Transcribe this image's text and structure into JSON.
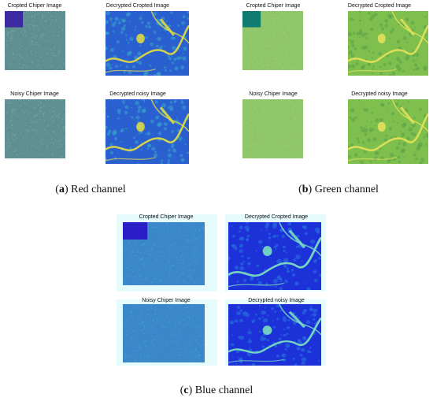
{
  "panels": [
    {
      "id": "a",
      "letter": "a",
      "caption": "Red channel",
      "titles": [
        "Cropted Chiper Image",
        "Decrypted Cropted Image",
        "Noisy Chiper Image",
        "Decrypted noisy Image"
      ],
      "palette": {
        "noise_base": "#5f8f93",
        "noise_dot": "#7fb3a4",
        "crop": "#3c2aa0",
        "dec_base": "#2a5fd0",
        "dec_mid": "#39a6c8",
        "dec_hi": "#e6e03c"
      }
    },
    {
      "id": "b",
      "letter": "b",
      "caption": "Green channel",
      "titles": [
        "Cropted Chiper Image",
        "Decrypted Cropted Image",
        "Noisy Chiper Image",
        "Decrypted noisy Image"
      ],
      "palette": {
        "noise_base": "#8fc66a",
        "noise_dot": "#a9d46b",
        "crop": "#0f7a6e",
        "dec_base": "#7fbf4e",
        "dec_mid": "#5aa04a",
        "dec_hi": "#e7e35a"
      }
    },
    {
      "id": "c",
      "letter": "c",
      "caption": "Blue channel",
      "titles": [
        "Cropted Chiper Image",
        "Decrypted Cropted Image",
        "Noisy Chiper Image",
        "Decrypted noisy Image"
      ],
      "palette": {
        "noise_base": "#3a87c9",
        "noise_dot": "#4fa1cf",
        "crop": "#2a1fc7",
        "dec_base": "#1c31d8",
        "dec_mid": "#2a79e0",
        "dec_hi": "#7fe6c0"
      }
    }
  ]
}
